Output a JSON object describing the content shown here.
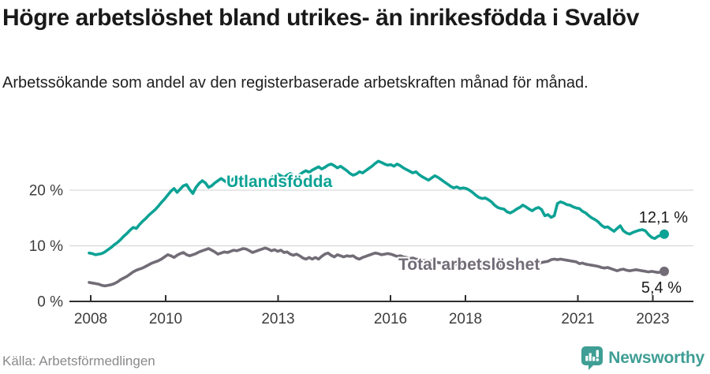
{
  "header": {
    "title": "Högre arbetslöshet bland utrikes- än inrikesfödda i Svalöv",
    "subtitle": "Arbetssökande som andel av den registerbaserade arbetskraften månad för månad."
  },
  "footer": {
    "source": "Källa: Arbetsförmedlingen",
    "brand": "Newsworthy"
  },
  "colors": {
    "teal": "#0ca295",
    "gray": "#716c76",
    "grid": "#d9d9d9",
    "axis": "#2e2e2e",
    "tick_label": "#3d3d3d",
    "value_label": "#1a1a1a",
    "logo_teal": "#3f9e95"
  },
  "chart_data": {
    "type": "line",
    "title": "Högre arbetslöshet bland utrikes- än inrikesfödda i Svalöv",
    "subtitle": "Arbetssökande som andel av den registerbaserade arbetskraften månad för månad.",
    "unit": "%",
    "frequency": "monthly",
    "x_start": "2008-01",
    "x_end": "2023-04",
    "x_ticks": [
      2008,
      2010,
      2013,
      2016,
      2018,
      2021,
      2023
    ],
    "y_ticks": [
      0,
      10,
      20
    ],
    "y_tick_labels": [
      "0 %",
      "10 %",
      "20 %"
    ],
    "ylim": [
      0,
      26.5
    ],
    "grid": "horizontal-only",
    "legend_position": "inline-labels",
    "series": [
      {
        "name": "Utlandsfödda",
        "color": "#0ca295",
        "end_value": 12.1,
        "end_label": "12,1 %",
        "values": [
          8.7,
          8.6,
          8.4,
          8.5,
          8.6,
          8.9,
          9.3,
          9.7,
          10.2,
          10.6,
          11.1,
          11.7,
          12.2,
          12.8,
          13.3,
          13.1,
          13.8,
          14.4,
          14.9,
          15.5,
          16.0,
          16.5,
          17.1,
          17.8,
          18.4,
          19.1,
          19.8,
          20.3,
          19.6,
          20.2,
          20.8,
          21.0,
          20.1,
          19.4,
          20.5,
          21.2,
          21.7,
          21.3,
          20.5,
          20.8,
          21.3,
          21.7,
          22.1,
          21.7,
          21.3,
          21.6,
          22.1,
          22.2,
          22.0,
          21.7,
          21.3,
          21.0,
          21.4,
          21.8,
          22.2,
          21.9,
          21.5,
          21.8,
          22.3,
          22.6,
          22.9,
          22.6,
          22.3,
          22.7,
          23.0,
          22.7,
          22.4,
          22.8,
          23.2,
          23.5,
          23.2,
          23.6,
          23.9,
          24.2,
          23.8,
          24.1,
          24.5,
          24.7,
          24.4,
          24.0,
          24.3,
          23.9,
          23.5,
          23.0,
          22.7,
          22.9,
          23.3,
          23.1,
          23.5,
          23.9,
          24.3,
          24.8,
          25.2,
          25.0,
          24.7,
          24.5,
          24.6,
          24.3,
          24.7,
          24.4,
          24.0,
          23.7,
          23.4,
          23.1,
          23.3,
          22.8,
          22.4,
          22.1,
          21.8,
          22.2,
          22.6,
          22.3,
          21.9,
          21.5,
          21.1,
          20.7,
          20.4,
          20.6,
          20.3,
          20.4,
          20.3,
          20.0,
          19.6,
          19.1,
          18.7,
          18.5,
          18.6,
          18.3,
          17.9,
          17.3,
          16.9,
          16.7,
          16.6,
          16.1,
          15.9,
          16.2,
          16.6,
          16.9,
          17.3,
          17.0,
          16.6,
          16.3,
          16.7,
          16.9,
          16.5,
          15.4,
          15.6,
          15.1,
          15.4,
          17.6,
          17.9,
          17.7,
          17.4,
          17.3,
          17.0,
          16.8,
          16.7,
          16.2,
          15.9,
          15.4,
          15.0,
          14.7,
          14.3,
          13.7,
          13.3,
          13.4,
          13.0,
          12.6,
          13.1,
          13.6,
          12.7,
          12.3,
          12.1,
          12.4,
          12.6,
          12.8,
          12.9,
          12.7,
          12.0,
          11.5,
          11.3,
          11.7,
          11.9,
          12.1
        ]
      },
      {
        "name": "Total arbetslöshet",
        "color": "#716c76",
        "end_value": 5.4,
        "end_label": "5,4 %",
        "values": [
          3.4,
          3.3,
          3.2,
          3.1,
          2.9,
          2.8,
          2.9,
          3.0,
          3.2,
          3.5,
          3.9,
          4.2,
          4.5,
          4.9,
          5.3,
          5.6,
          5.8,
          6.0,
          6.3,
          6.6,
          6.9,
          7.1,
          7.3,
          7.6,
          8.0,
          8.4,
          8.2,
          7.9,
          8.3,
          8.6,
          8.8,
          8.4,
          8.2,
          8.4,
          8.6,
          8.9,
          9.1,
          9.3,
          9.5,
          9.2,
          8.9,
          8.5,
          8.7,
          8.9,
          8.8,
          9.0,
          9.2,
          9.1,
          9.3,
          9.5,
          9.4,
          9.1,
          8.8,
          9.0,
          9.2,
          9.4,
          9.6,
          9.4,
          9.1,
          9.3,
          9.0,
          9.2,
          8.8,
          8.9,
          8.5,
          8.3,
          8.5,
          8.2,
          7.8,
          7.6,
          7.9,
          7.6,
          7.9,
          7.6,
          8.1,
          8.5,
          8.7,
          8.3,
          8.0,
          8.4,
          8.2,
          8.0,
          8.2,
          8.1,
          8.2,
          7.8,
          7.6,
          7.9,
          8.1,
          8.3,
          8.5,
          8.7,
          8.6,
          8.4,
          8.5,
          8.6,
          8.5,
          8.3,
          8.1,
          8.2,
          8.0,
          7.9,
          7.7,
          7.8,
          7.6,
          7.5,
          7.4,
          7.3,
          7.2,
          7.3,
          7.1,
          7.0,
          6.9,
          6.8,
          6.9,
          7.0,
          6.8,
          6.7,
          6.6,
          6.7,
          6.6,
          6.5,
          6.4,
          6.3,
          6.4,
          6.5,
          6.4,
          6.3,
          6.2,
          6.3,
          6.4,
          6.5,
          6.4,
          6.3,
          6.4,
          6.5,
          6.6,
          6.7,
          6.8,
          6.7,
          6.6,
          6.7,
          6.8,
          6.9,
          7.0,
          7.1,
          7.2,
          7.5,
          7.6,
          7.5,
          7.6,
          7.5,
          7.4,
          7.3,
          7.2,
          7.1,
          6.8,
          6.9,
          6.7,
          6.6,
          6.5,
          6.4,
          6.3,
          6.1,
          6.0,
          6.1,
          5.9,
          5.7,
          5.5,
          5.7,
          5.8,
          5.6,
          5.5,
          5.6,
          5.7,
          5.6,
          5.5,
          5.4,
          5.3,
          5.4,
          5.3,
          5.2,
          5.3,
          5.4
        ]
      }
    ]
  }
}
